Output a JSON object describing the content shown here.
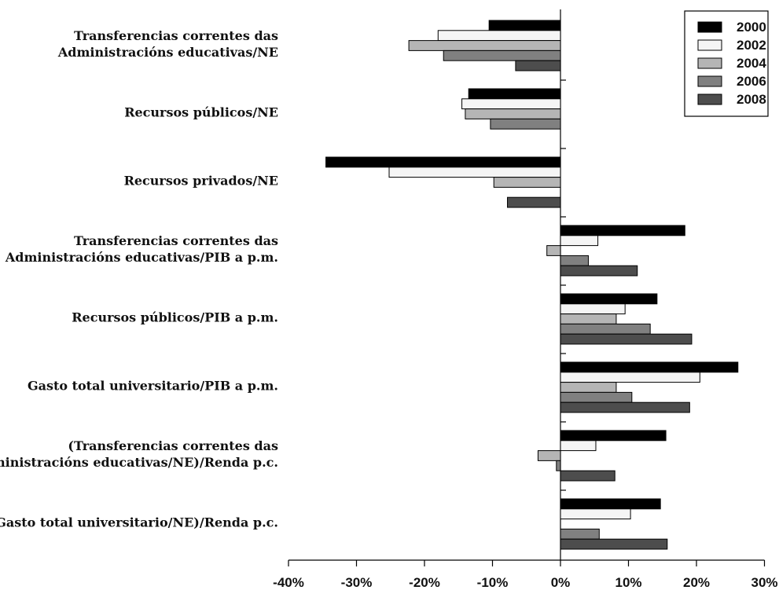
{
  "chart_data": {
    "type": "bar",
    "orientation": "horizontal",
    "categories": [
      [
        "Transferencias correntes das",
        "Administracións educativas/NE"
      ],
      [
        "Recursos públicos/NE"
      ],
      [
        "Recursos privados/NE"
      ],
      [
        "Transferencias correntes das",
        "Administracións educativas/PIB a p.m."
      ],
      [
        "Recursos públicos/PIB a p.m."
      ],
      [
        "Gasto total universitario/PIB a p.m."
      ],
      [
        "(Transferencias correntes das",
        "Administracións educativas/NE)/Renda p.c."
      ],
      [
        "(Gasto total universitario/NE)/Renda p.c."
      ]
    ],
    "series": [
      {
        "name": "2000",
        "color": "#000000",
        "values": [
          -10.5,
          -13.5,
          -34.5,
          18.3,
          14.2,
          26.1,
          15.5,
          14.7
        ]
      },
      {
        "name": "2002",
        "color": "#f5f5f5",
        "values": [
          -18.0,
          -14.5,
          -25.2,
          5.5,
          9.5,
          20.5,
          5.2,
          10.3
        ]
      },
      {
        "name": "2004",
        "color": "#b5b5b5",
        "values": [
          -22.3,
          -14.0,
          -9.8,
          -2.0,
          8.2,
          8.2,
          -3.3,
          null
        ]
      },
      {
        "name": "2006",
        "color": "#808080",
        "values": [
          -17.2,
          -10.3,
          null,
          4.1,
          13.2,
          10.5,
          -0.6,
          5.7
        ]
      },
      {
        "name": "2008",
        "color": "#4d4d4d",
        "values": [
          -6.6,
          null,
          -7.8,
          11.3,
          19.3,
          19.0,
          8.0,
          15.7
        ]
      }
    ],
    "xlim": [
      -40,
      30
    ],
    "xticks": [
      -40,
      -30,
      -20,
      -10,
      0,
      10,
      20,
      30
    ],
    "xtick_labels": [
      "-40%",
      "-30%",
      "-20%",
      "-10%",
      "0%",
      "10%",
      "20%",
      "30%"
    ],
    "legend_position": "top-right",
    "grid": false
  }
}
